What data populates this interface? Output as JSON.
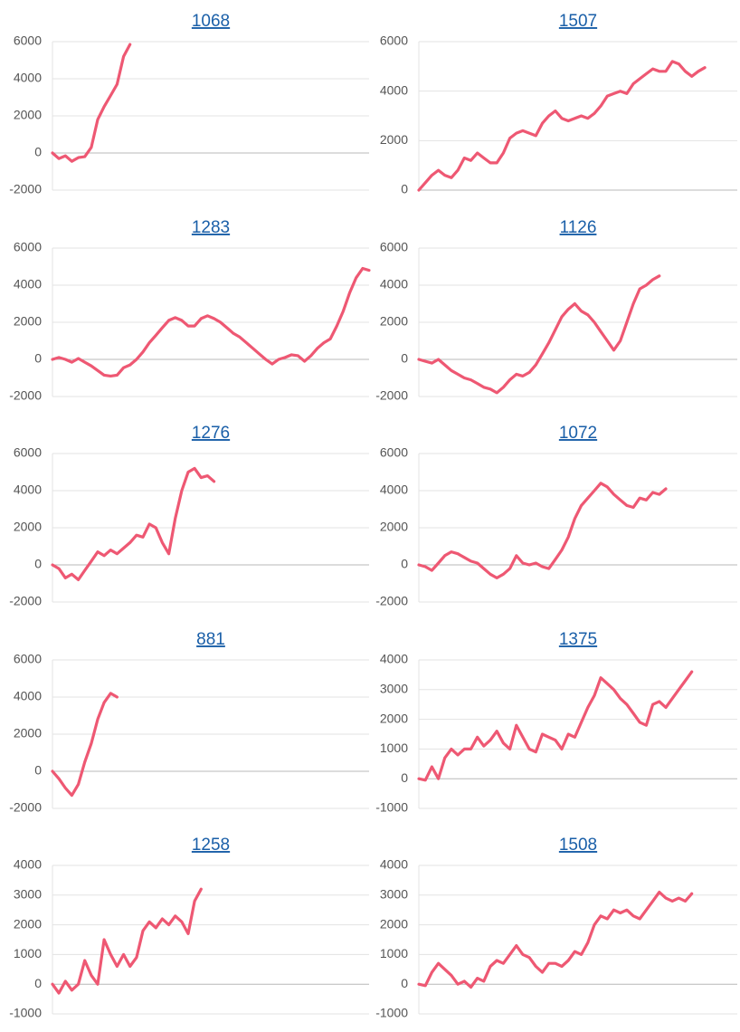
{
  "chart_data": [
    {
      "type": "line",
      "title": "1068",
      "color": "#ee5873",
      "ylim": [
        -2000,
        6000
      ],
      "yticks": [
        -2000,
        0,
        2000,
        4000,
        6000
      ],
      "grid": true,
      "values": [
        0,
        -300,
        -150,
        -450,
        -250,
        -200,
        300,
        1800,
        2500,
        3100,
        3700,
        5200,
        5850,
        null,
        null,
        null,
        null,
        null,
        null,
        null,
        null,
        null,
        null,
        null,
        null,
        null,
        null,
        null,
        null,
        null,
        null,
        null,
        null,
        null,
        null,
        null,
        null,
        null,
        null,
        null,
        null,
        null,
        null,
        null,
        null,
        null,
        null,
        null,
        null,
        null
      ]
    },
    {
      "type": "line",
      "title": "1507",
      "color": "#ee5873",
      "ylim": [
        0,
        6000
      ],
      "yticks": [
        0,
        2000,
        4000,
        6000
      ],
      "grid": true,
      "values": [
        0,
        300,
        600,
        800,
        600,
        500,
        800,
        1300,
        1200,
        1500,
        1300,
        1100,
        1100,
        1500,
        2100,
        2300,
        2400,
        2300,
        2200,
        2700,
        3000,
        3200,
        2900,
        2800,
        2900,
        3000,
        2900,
        3100,
        3400,
        3800,
        3900,
        4000,
        3900,
        4300,
        4500,
        4700,
        4900,
        4800,
        4800,
        5200,
        5100,
        4800,
        4600,
        4800,
        4950,
        null,
        null,
        null,
        null,
        null
      ]
    },
    {
      "type": "line",
      "title": "1283",
      "color": "#ee5873",
      "ylim": [
        -2000,
        6000
      ],
      "yticks": [
        -2000,
        0,
        2000,
        4000,
        6000
      ],
      "grid": true,
      "values": [
        0,
        100,
        0,
        -150,
        50,
        -150,
        -350,
        -600,
        -850,
        -900,
        -850,
        -450,
        -300,
        0,
        400,
        900,
        1300,
        1700,
        2100,
        2250,
        2100,
        1800,
        1800,
        2200,
        2350,
        2200,
        2000,
        1700,
        1400,
        1200,
        900,
        600,
        300,
        0,
        -250,
        0,
        100,
        250,
        200,
        -100,
        200,
        600,
        900,
        1100,
        1800,
        2600,
        3600,
        4400,
        4900,
        4800
      ]
    },
    {
      "type": "line",
      "title": "1126",
      "color": "#ee5873",
      "ylim": [
        -2000,
        6000
      ],
      "yticks": [
        -2000,
        0,
        2000,
        4000,
        6000
      ],
      "grid": true,
      "values": [
        0,
        -100,
        -200,
        0,
        -300,
        -600,
        -800,
        -1000,
        -1100,
        -1300,
        -1500,
        -1600,
        -1800,
        -1500,
        -1100,
        -800,
        -900,
        -700,
        -300,
        300,
        900,
        1600,
        2300,
        2700,
        3000,
        2600,
        2400,
        2000,
        1500,
        1000,
        500,
        1000,
        2000,
        3000,
        3800,
        4000,
        4300,
        4500,
        null,
        null,
        null,
        null,
        null,
        null,
        null,
        null,
        null,
        null,
        null,
        null
      ]
    },
    {
      "type": "line",
      "title": "1276",
      "color": "#ee5873",
      "ylim": [
        -2000,
        6000
      ],
      "yticks": [
        -2000,
        0,
        2000,
        4000,
        6000
      ],
      "grid": true,
      "values": [
        0,
        -200,
        -700,
        -500,
        -800,
        -300,
        200,
        700,
        500,
        800,
        600,
        900,
        1200,
        1600,
        1500,
        2200,
        2000,
        1200,
        600,
        2500,
        4000,
        5000,
        5200,
        4700,
        4800,
        4500,
        null,
        null,
        null,
        null,
        null,
        null,
        null,
        null,
        null,
        null,
        null,
        null,
        null,
        null,
        null,
        null,
        null,
        null,
        null,
        null,
        null,
        null,
        null,
        null
      ]
    },
    {
      "type": "line",
      "title": "1072",
      "color": "#ee5873",
      "ylim": [
        -2000,
        6000
      ],
      "yticks": [
        -2000,
        0,
        2000,
        4000,
        6000
      ],
      "grid": true,
      "values": [
        0,
        -100,
        -300,
        100,
        500,
        700,
        600,
        400,
        200,
        100,
        -200,
        -500,
        -700,
        -500,
        -200,
        500,
        100,
        0,
        100,
        -100,
        -200,
        300,
        800,
        1500,
        2500,
        3200,
        3600,
        4000,
        4400,
        4200,
        3800,
        3500,
        3200,
        3100,
        3600,
        3500,
        3900,
        3800,
        4100,
        null,
        null,
        null,
        null,
        null,
        null,
        null,
        null,
        null,
        null,
        null
      ]
    },
    {
      "type": "line",
      "title": "881",
      "color": "#ee5873",
      "ylim": [
        -2000,
        6000
      ],
      "yticks": [
        -2000,
        0,
        2000,
        4000,
        6000
      ],
      "grid": true,
      "values": [
        0,
        -400,
        -900,
        -1300,
        -700,
        500,
        1500,
        2800,
        3700,
        4200,
        4000,
        null,
        null,
        null,
        null,
        null,
        null,
        null,
        null,
        null,
        null,
        null,
        null,
        null,
        null,
        null,
        null,
        null,
        null,
        null,
        null,
        null,
        null,
        null,
        null,
        null,
        null,
        null,
        null,
        null,
        null,
        null,
        null,
        null,
        null,
        null,
        null,
        null,
        null,
        null
      ]
    },
    {
      "type": "line",
      "title": "1375",
      "color": "#ee5873",
      "ylim": [
        -1000,
        4000
      ],
      "yticks": [
        -1000,
        0,
        1000,
        2000,
        3000,
        4000
      ],
      "grid": true,
      "values": [
        0,
        -50,
        400,
        0,
        700,
        1000,
        800,
        1000,
        1000,
        1400,
        1100,
        1300,
        1600,
        1200,
        1000,
        1800,
        1400,
        1000,
        900,
        1500,
        1400,
        1300,
        1000,
        1500,
        1400,
        1900,
        2400,
        2800,
        3400,
        3200,
        3000,
        2700,
        2500,
        2200,
        1900,
        1800,
        2500,
        2600,
        2400,
        2700,
        3000,
        3300,
        3600,
        null,
        null,
        null,
        null,
        null,
        null,
        null
      ]
    },
    {
      "type": "line",
      "title": "1258",
      "color": "#ee5873",
      "ylim": [
        -1000,
        4000
      ],
      "yticks": [
        -1000,
        0,
        1000,
        2000,
        3000,
        4000
      ],
      "grid": true,
      "values": [
        0,
        -300,
        100,
        -200,
        0,
        800,
        300,
        0,
        1500,
        1000,
        600,
        1000,
        600,
        900,
        1800,
        2100,
        1900,
        2200,
        2000,
        2300,
        2100,
        1700,
        2800,
        3200,
        null,
        null,
        null,
        null,
        null,
        null,
        null,
        null,
        null,
        null,
        null,
        null,
        null,
        null,
        null,
        null,
        null,
        null,
        null,
        null,
        null,
        null,
        null,
        null,
        null,
        null
      ]
    },
    {
      "type": "line",
      "title": "1508",
      "color": "#ee5873",
      "ylim": [
        -1000,
        4000
      ],
      "yticks": [
        -1000,
        0,
        1000,
        2000,
        3000,
        4000
      ],
      "grid": true,
      "values": [
        0,
        -50,
        400,
        700,
        500,
        300,
        0,
        100,
        -100,
        200,
        100,
        600,
        800,
        700,
        1000,
        1300,
        1000,
        900,
        600,
        400,
        700,
        700,
        600,
        800,
        1100,
        1000,
        1400,
        2000,
        2300,
        2200,
        2500,
        2400,
        2500,
        2300,
        2200,
        2500,
        2800,
        3100,
        2900,
        2800,
        2900,
        2800,
        3050,
        null,
        null,
        null,
        null,
        null,
        null,
        null
      ]
    }
  ]
}
